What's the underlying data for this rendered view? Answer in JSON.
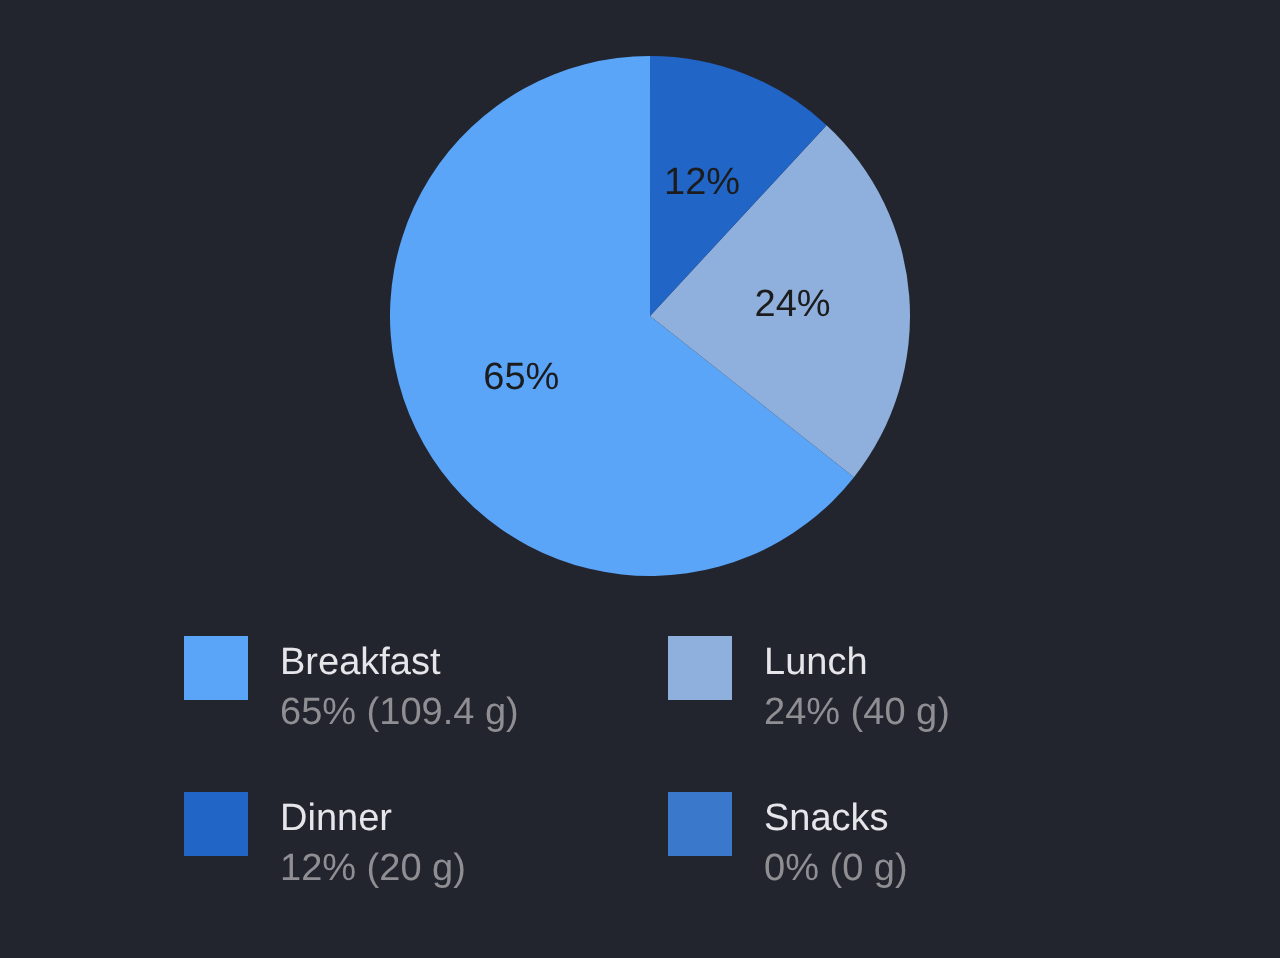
{
  "chart_data": {
    "type": "pie",
    "categories": [
      "Breakfast",
      "Lunch",
      "Dinner",
      "Snacks"
    ],
    "values": [
      65,
      24,
      12,
      0
    ],
    "colors": [
      "#5aa5f8",
      "#8fb0dc",
      "#2166c6",
      "#3a78cc"
    ],
    "value_labels": [
      "65%",
      "24%",
      "12%",
      null
    ],
    "annotations": [
      "65% (109.4 g)",
      "24% (40 g)",
      "12% (20 g)",
      "0% (0 g)"
    ],
    "legend": "bottom"
  }
}
